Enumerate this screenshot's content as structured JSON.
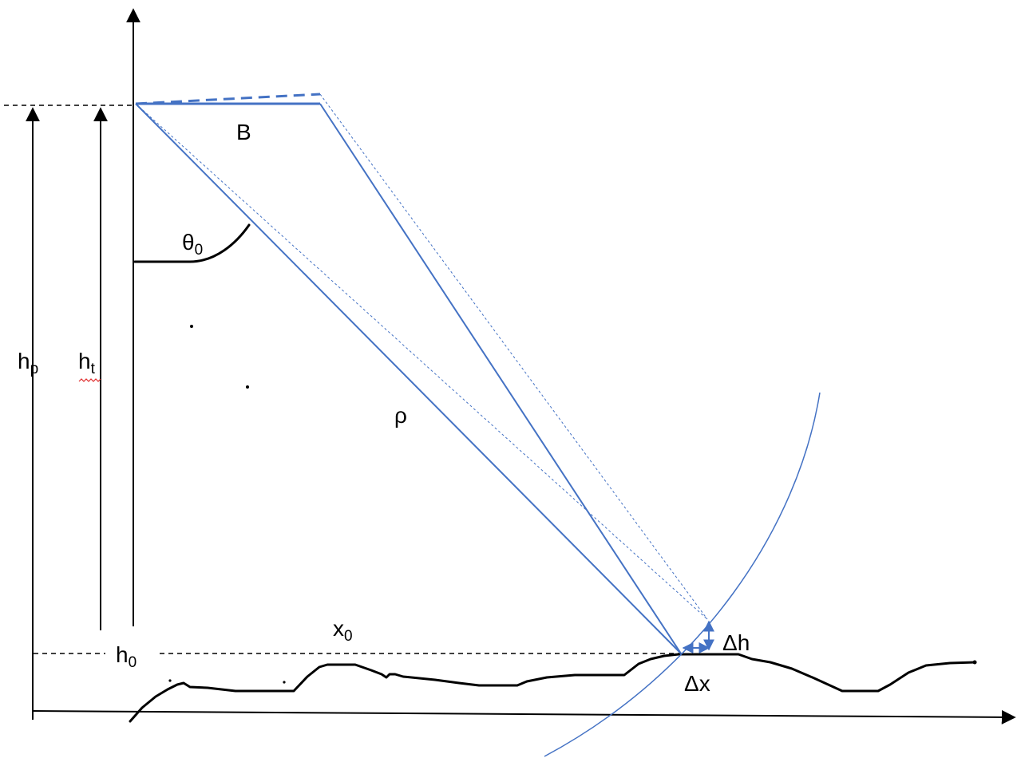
{
  "diagram": {
    "labels": {
      "baseline": "B",
      "look_angle": "θ",
      "look_angle_sub": "0",
      "range": "ρ",
      "platform_height": "h",
      "platform_height_sub": "p",
      "target_height": "h",
      "target_height_sub": "t",
      "reference_height": "h",
      "reference_height_sub": "0",
      "ground_range": "x",
      "ground_range_sub": "0",
      "delta_h": "Δh",
      "delta_x": "Δx"
    },
    "colors": {
      "ink": "#000000",
      "geometry": "#4472c4",
      "squiggle": "#e03030"
    }
  }
}
